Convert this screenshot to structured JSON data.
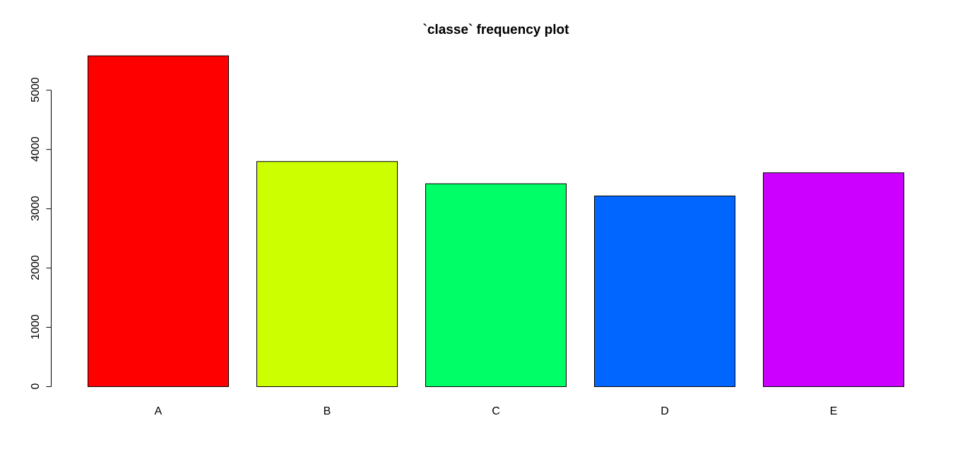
{
  "chart_data": {
    "type": "bar",
    "title": "`classe` frequency plot",
    "xlabel": "",
    "ylabel": "",
    "categories": [
      "A",
      "B",
      "C",
      "D",
      "E"
    ],
    "values": [
      5580,
      3797,
      3422,
      3216,
      3607
    ],
    "colors": [
      "#FF0000",
      "#CCFF00",
      "#00FF66",
      "#0066FF",
      "#CC00FF"
    ],
    "yticks": [
      0,
      1000,
      2000,
      3000,
      4000,
      5000
    ],
    "ylim": [
      0,
      5580
    ],
    "grid": false,
    "legend": "none"
  }
}
